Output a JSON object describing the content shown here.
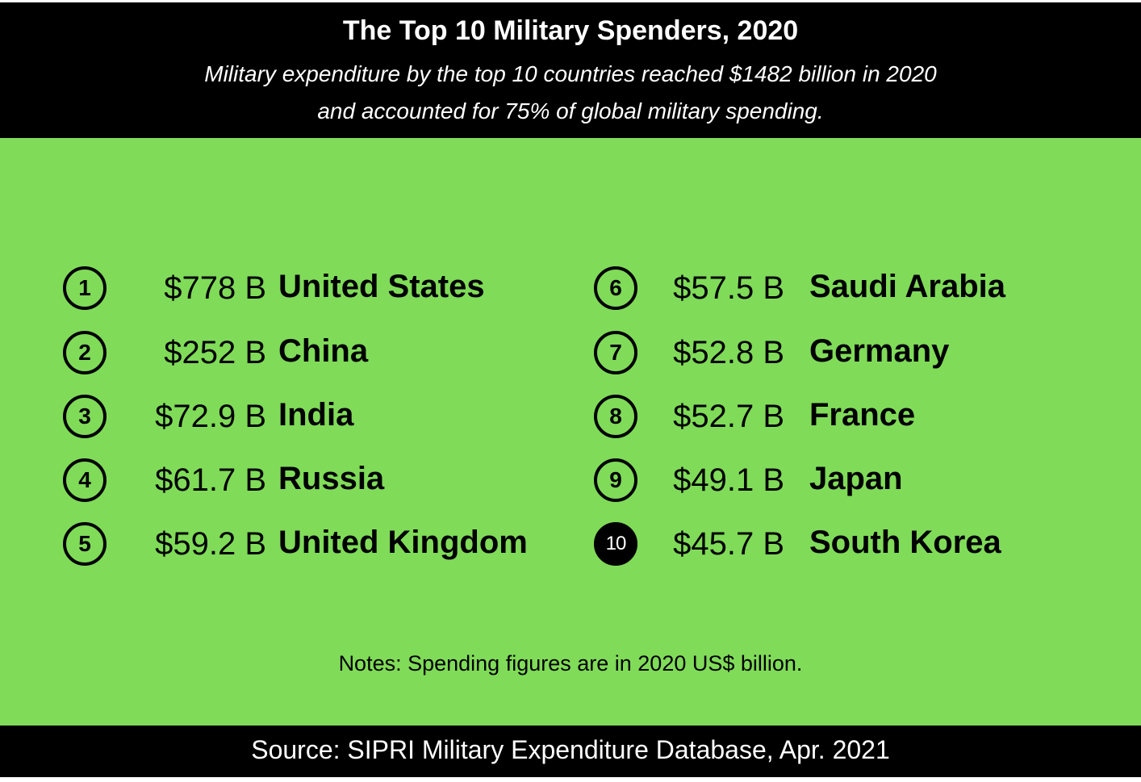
{
  "header": {
    "title": "The Top 10 Military Spenders, 2020",
    "subtitle_line1": "Military expenditure by the top 10 countries reached $1482 billion in 2020",
    "subtitle_line2": "and accounted for 75% of global military spending."
  },
  "rankings": [
    {
      "rank": "1",
      "amount": "$778 B",
      "country": "United States"
    },
    {
      "rank": "2",
      "amount": "$252 B",
      "country": "China"
    },
    {
      "rank": "3",
      "amount": "$72.9 B",
      "country": "India"
    },
    {
      "rank": "4",
      "amount": "$61.7 B",
      "country": "Russia"
    },
    {
      "rank": "5",
      "amount": "$59.2 B",
      "country": "United Kingdom"
    },
    {
      "rank": "6",
      "amount": "$57.5 B",
      "country": "Saudi Arabia"
    },
    {
      "rank": "7",
      "amount": "$52.8 B",
      "country": "Germany"
    },
    {
      "rank": "8",
      "amount": "$52.7 B",
      "country": "France"
    },
    {
      "rank": "9",
      "amount": "$49.1 B",
      "country": "Japan"
    },
    {
      "rank": "10",
      "amount": "$45.7 B",
      "country": "South Korea"
    }
  ],
  "notes": "Notes: Spending figures are in 2020 US$ billion.",
  "source": "Source: SIPRI Military Expenditure Database, Apr. 2021",
  "colors": {
    "header_bg": "#000000",
    "panel_bg": "#80db59",
    "footer_bg": "#000000",
    "text_light": "#ffffff",
    "text_dark": "#000000"
  }
}
